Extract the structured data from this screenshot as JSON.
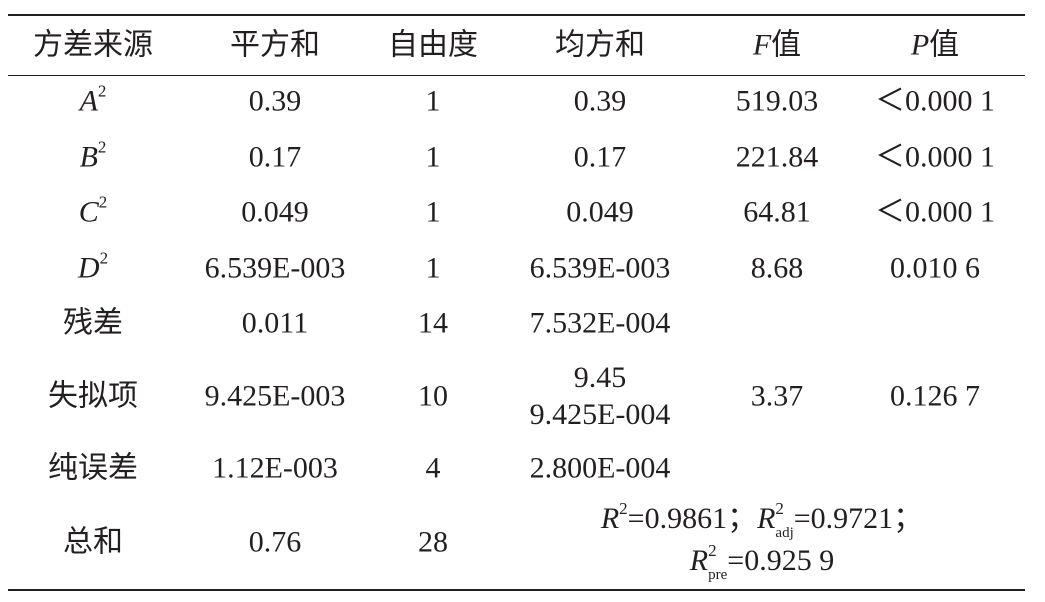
{
  "table": {
    "header": [
      "方差来源",
      "平方和",
      "自由度",
      "均方和",
      {
        "var": "F",
        "text": "值"
      },
      {
        "var": "P",
        "text": "值"
      }
    ],
    "rows": [
      [
        {
          "var": "A",
          "sup": "2"
        },
        "0.39",
        "1",
        "0.39",
        "519.03",
        "＜0.000 1"
      ],
      [
        {
          "var": "B",
          "sup": "2"
        },
        "0.17",
        "1",
        "0.17",
        "221.84",
        "＜0.000 1"
      ],
      [
        {
          "var": "C",
          "sup": "2"
        },
        "0.049",
        "1",
        "0.049",
        "64.81",
        "＜0.000 1"
      ],
      [
        {
          "var": "D",
          "sup": "2"
        },
        "6.539E-003",
        "1",
        "6.539E-003",
        "8.68",
        "0.010 6"
      ],
      [
        "残差",
        "0.011",
        "14",
        "7.532E-004"
      ],
      [
        "失拟项",
        "9.425E-003",
        "10",
        [
          "9.45",
          "9.425E-004"
        ],
        "3.37",
        "0.126 7"
      ],
      [
        "纯误差",
        "1.12E-003",
        "4",
        "2.800E-004"
      ],
      [
        "总和",
        "0.76",
        "28"
      ]
    ],
    "summary": [
      [
        {
          "var": "R",
          "sup": "2",
          "text": "=0.9861；"
        },
        {
          "var": "R",
          "sup": "2",
          "sub": "adj",
          "text": "=0.9721；"
        }
      ],
      [
        {
          "var": "R",
          "sup": "2",
          "sub": "pre",
          "text": "=0.925 9"
        }
      ]
    ]
  }
}
